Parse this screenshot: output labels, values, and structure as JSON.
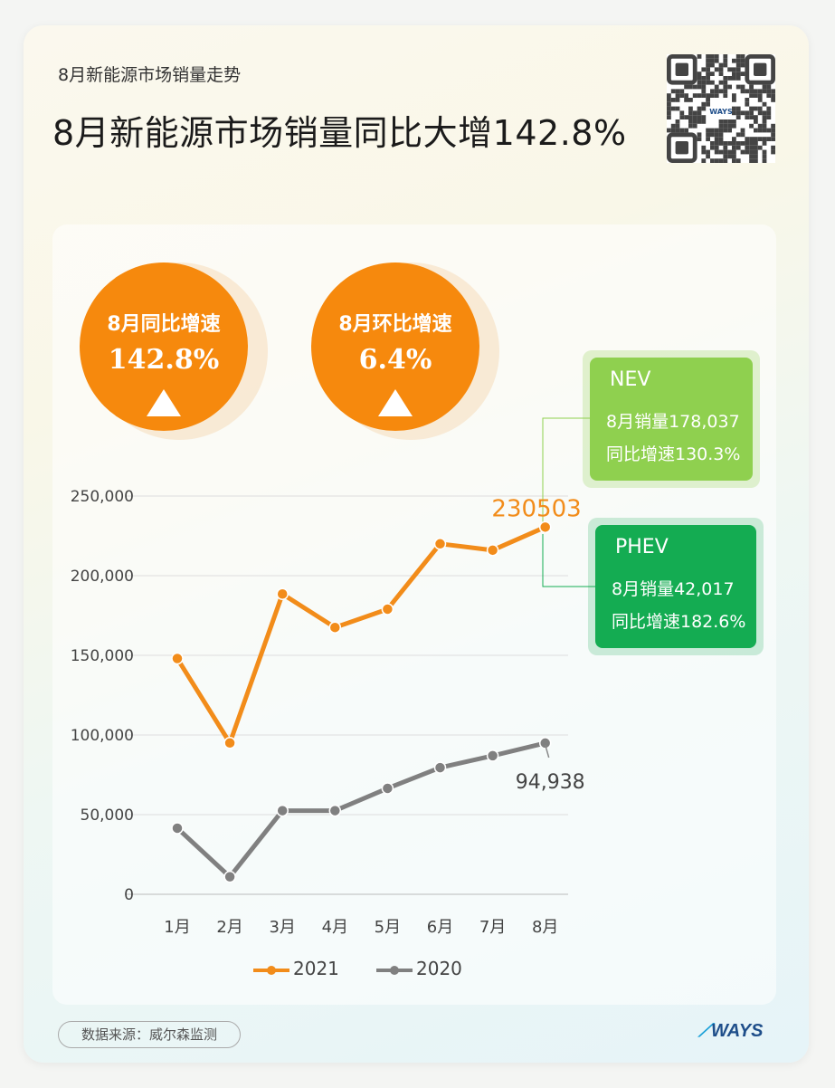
{
  "header": {
    "subtitle": "8月新能源市场销量走势",
    "title": "8月新能源市场销量同比大增142.8%"
  },
  "stats": [
    {
      "label": "8月同比增速",
      "value": "142.8%"
    },
    {
      "label": "8月环比增速",
      "value": "6.4%"
    }
  ],
  "callouts": {
    "nev": {
      "title": "NEV",
      "line1": "8月销量178,037",
      "line2": "同比增速130.3%",
      "color": "#8fd04f"
    },
    "phev": {
      "title": "PHEV",
      "line1": "8月销量42,017",
      "line2": "同比增速182.6%",
      "color": "#14ac52"
    }
  },
  "chart_data": {
    "type": "line",
    "categories": [
      "1月",
      "2月",
      "3月",
      "4月",
      "5月",
      "6月",
      "7月",
      "8月"
    ],
    "yticks": [
      "0",
      "50,000",
      "100,000",
      "150,000",
      "200,000",
      "250,000"
    ],
    "ylim": [
      0,
      250000
    ],
    "grid": true,
    "legend_position": "bottom",
    "series": [
      {
        "name": "2021",
        "color": "#f28c1a",
        "values": [
          148000,
          95000,
          188500,
          167500,
          179000,
          220000,
          216000,
          230503
        ]
      },
      {
        "name": "2020",
        "color": "#808080",
        "values": [
          41500,
          11000,
          52500,
          52500,
          66500,
          79500,
          87000,
          94938
        ]
      }
    ],
    "annotations": [
      {
        "series": 0,
        "index": 7,
        "text": "230503"
      },
      {
        "series": 1,
        "index": 7,
        "text": "94,938"
      }
    ]
  },
  "footer": {
    "source": "数据来源：威尔森监测",
    "brand": "WAYS",
    "qr_brand": "WAYS"
  }
}
